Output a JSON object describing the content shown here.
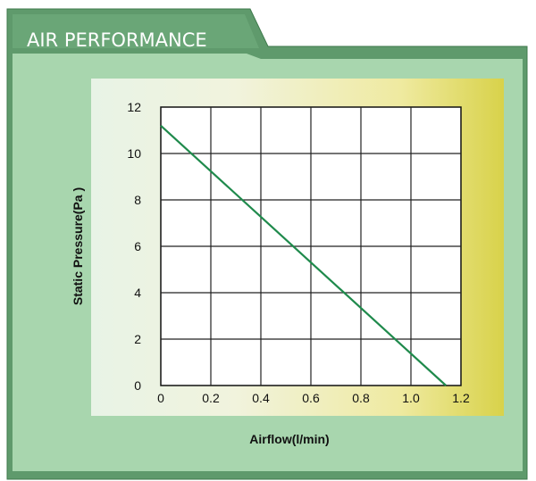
{
  "panel": {
    "title": "AIR PERFORMANCE",
    "colors": {
      "outer": "#5f9a6c",
      "panel": "#a8d6ae",
      "gradient_left": "#e8f3e6",
      "gradient_right": "#d8d24a",
      "line": "#1f8a4c"
    }
  },
  "chart_data": {
    "type": "line",
    "title": "",
    "xlabel": "Airflow(l/min)",
    "ylabel": "Static Pressure(Pa )",
    "xlim": [
      0,
      1.2
    ],
    "ylim": [
      0,
      12
    ],
    "xticks": [
      "0",
      "0.2",
      "0.4",
      "0.6",
      "0.8",
      "1.0",
      "1.2"
    ],
    "yticks": [
      "0",
      "2",
      "4",
      "6",
      "8",
      "10",
      "12"
    ],
    "grid": true,
    "series": [
      {
        "x": [
          0,
          1.14
        ],
        "y": [
          11.2,
          0
        ]
      }
    ]
  }
}
